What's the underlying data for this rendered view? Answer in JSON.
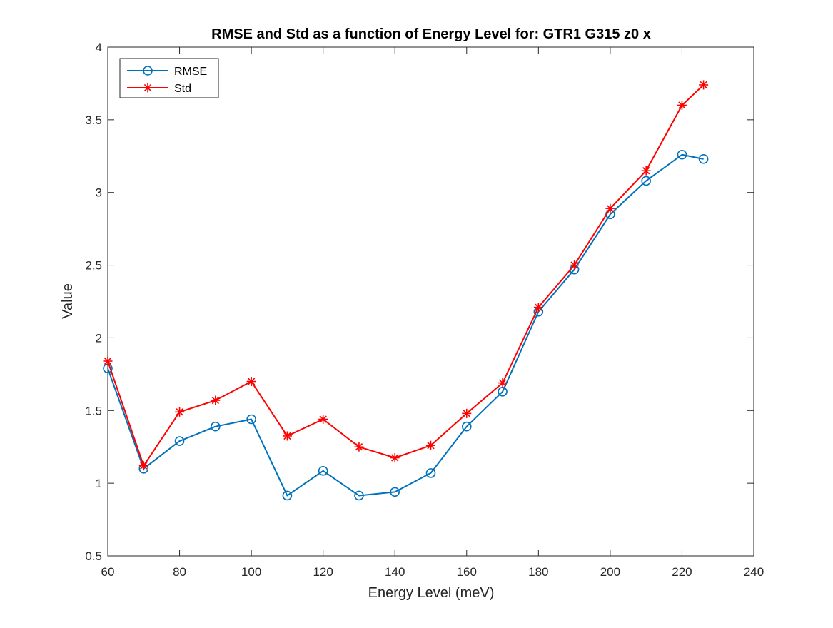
{
  "chart_data": {
    "type": "line",
    "title": "RMSE and Std as a function of Energy Level for: GTR1 G315 z0 x",
    "xlabel": "Energy Level (meV)",
    "ylabel": "Value",
    "xlim": [
      60,
      240
    ],
    "ylim": [
      0.5,
      4
    ],
    "xticks": [
      60,
      80,
      100,
      120,
      140,
      160,
      180,
      200,
      220,
      240
    ],
    "yticks": [
      0.5,
      1,
      1.5,
      2,
      2.5,
      3,
      3.5,
      4
    ],
    "grid": false,
    "legend_position": "top-left",
    "x": [
      60,
      70,
      80,
      90,
      100,
      110,
      120,
      130,
      140,
      150,
      160,
      170,
      180,
      190,
      200,
      210,
      220,
      226
    ],
    "series": [
      {
        "name": "RMSE",
        "color": "#0072BD",
        "marker": "circle",
        "values": [
          1.79,
          1.1,
          1.29,
          1.39,
          1.44,
          0.915,
          1.085,
          0.915,
          0.94,
          1.07,
          1.39,
          1.63,
          2.18,
          2.47,
          2.85,
          3.08,
          3.26,
          3.23
        ]
      },
      {
        "name": "Std",
        "color": "#FF0000",
        "marker": "asterisk",
        "values": [
          1.84,
          1.12,
          1.49,
          1.57,
          1.7,
          1.325,
          1.44,
          1.25,
          1.175,
          1.26,
          1.48,
          1.69,
          2.21,
          2.5,
          2.89,
          3.15,
          3.6,
          3.74
        ]
      }
    ]
  }
}
